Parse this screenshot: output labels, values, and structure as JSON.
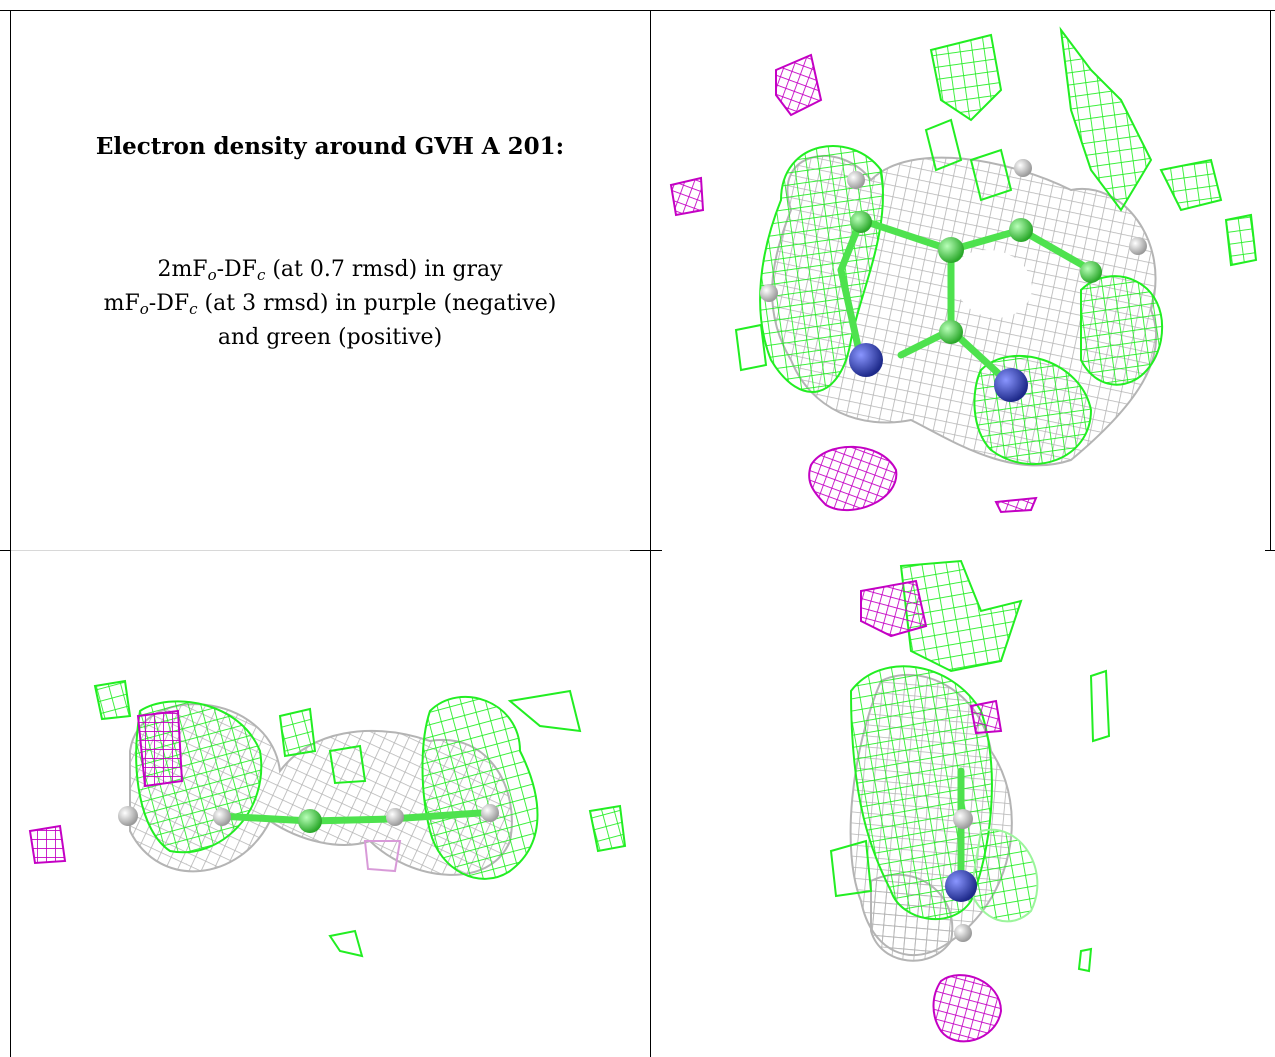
{
  "panel_title": "Electron density around GVH A 201:",
  "legend": {
    "line1": {
      "prefix": "2mF",
      "sub1": "o",
      "mid": "-DF",
      "sub2": "c",
      "suffix": " (at 0.7 rmsd) in gray"
    },
    "line2": {
      "prefix": "mF",
      "sub1": "o",
      "mid": "-DF",
      "sub2": "c",
      "suffix": " (at 3 rmsd) in purple (negative)"
    },
    "line3": "and green (positive)"
  },
  "colors": {
    "gray_mesh": "#b4b4b4",
    "negative_mesh": "#c400c4",
    "positive_mesh": "#22ee22",
    "carbon": "#4ee24e",
    "nitrogen": "#3c48b8",
    "hydrogen": "#d6d6d6",
    "frame": "#000000"
  },
  "views": [
    "top-view",
    "side-view",
    "edge-view"
  ]
}
